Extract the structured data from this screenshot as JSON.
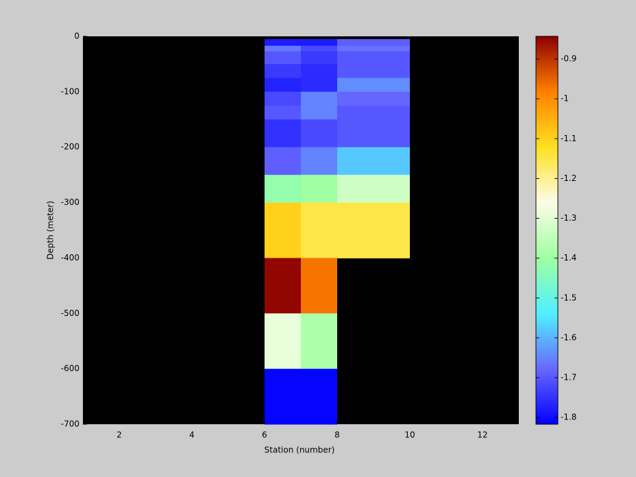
{
  "chart_data": {
    "type": "heatmap",
    "xlabel": "Station (number)",
    "ylabel": "Depth (meter)",
    "xlim": [
      1,
      13
    ],
    "ylim": [
      -700,
      0
    ],
    "xticks": [
      2,
      4,
      6,
      8,
      10,
      12
    ],
    "yticks": [
      0,
      -100,
      -200,
      -300,
      -400,
      -500,
      -600,
      -700
    ],
    "background": "#000000",
    "x_edges": [
      6,
      7,
      8,
      10
    ],
    "y_edges": [
      -5,
      -17,
      -27,
      -50,
      -75,
      -100,
      -125,
      -150,
      -200,
      -250,
      -300,
      -400,
      -500,
      -600,
      -700
    ],
    "values": [
      [
        -1.78,
        -1.78,
        -1.69
      ],
      [
        -1.66,
        -1.72,
        -1.67
      ],
      [
        -1.7,
        -1.74,
        -1.7
      ],
      [
        -1.74,
        -1.76,
        -1.7
      ],
      [
        -1.77,
        -1.76,
        -1.64
      ],
      [
        -1.72,
        -1.65,
        -1.68
      ],
      [
        -1.7,
        -1.65,
        -1.7
      ],
      [
        -1.75,
        -1.72,
        -1.7
      ],
      [
        -1.69,
        -1.65,
        -1.58
      ],
      [
        -1.42,
        -1.4,
        -1.33
      ],
      [
        -1.1,
        -1.15,
        -1.15
      ],
      [
        -0.85,
        -0.97,
        null
      ],
      [
        -1.29,
        -1.38,
        null
      ],
      [
        -1.81,
        -1.81,
        null
      ]
    ],
    "colormap": [
      "#0000ff",
      "#6868ff",
      "#50f0ff",
      "#a0ffa0",
      "#fcfce8",
      "#ffe020",
      "#ff8000",
      "#8b0000"
    ],
    "clim": [
      -1.817,
      -0.843
    ],
    "cticks": [
      -0.9,
      -1,
      -1.1,
      -1.2,
      -1.3,
      -1.4,
      -1.5,
      -1.6,
      -1.7,
      -1.8
    ]
  }
}
